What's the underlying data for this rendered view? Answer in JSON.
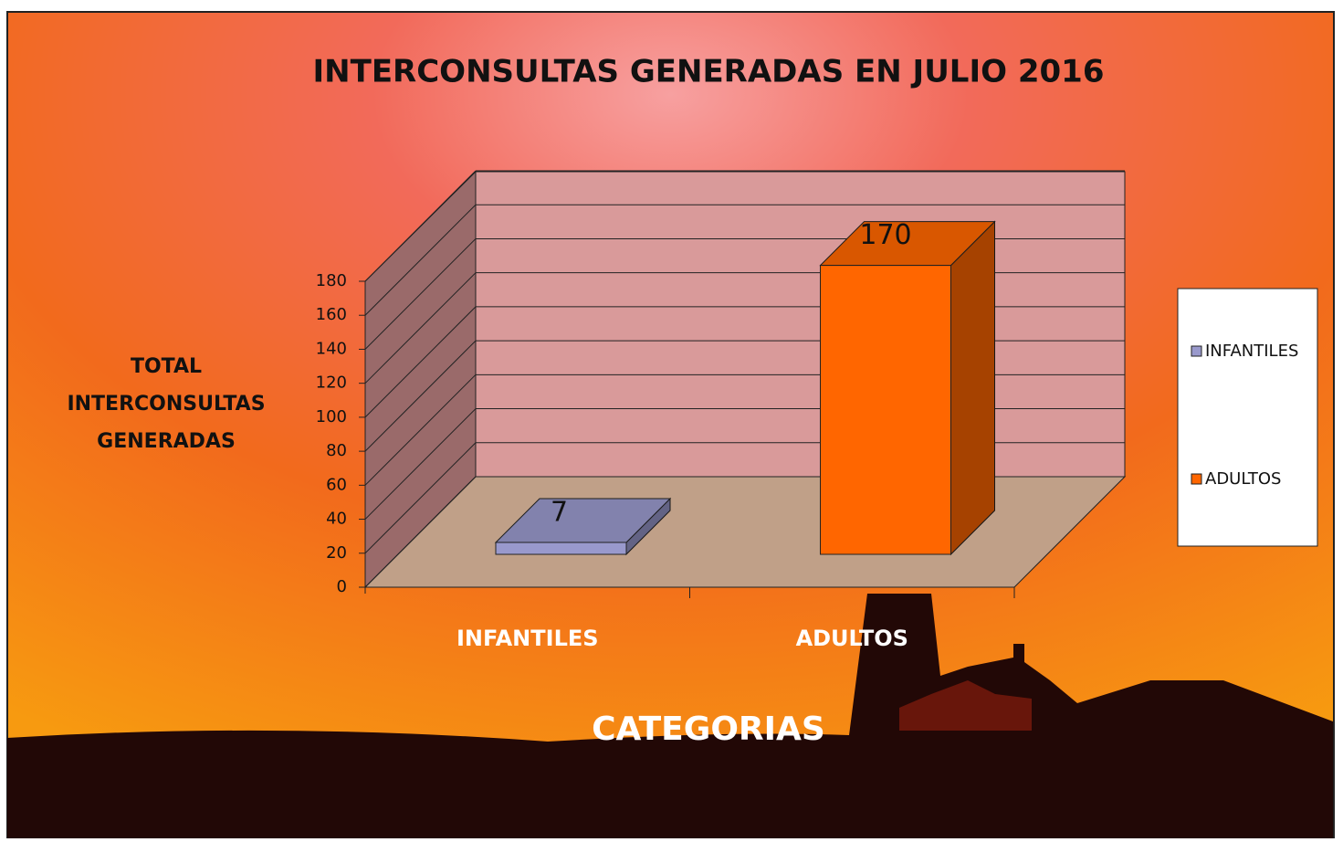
{
  "chart_data": {
    "type": "bar3d",
    "title": "INTERCONSULTAS  GENERADAS EN  JULIO  2016",
    "x_label": "CATEGORIAS",
    "y_label": [
      "TOTAL",
      "INTERCONSULTAS",
      "GENERADAS"
    ],
    "categories": [
      "INFANTILES",
      "ADULTOS"
    ],
    "series": [
      {
        "name": "INFANTILES",
        "color": "#9999cc",
        "values": [
          7,
          null
        ]
      },
      {
        "name": "ADULTOS",
        "color": "#ff6600",
        "values": [
          null,
          170
        ]
      }
    ],
    "ylim": [
      0,
      180
    ],
    "yticks": [
      0,
      20,
      40,
      60,
      80,
      100,
      120,
      140,
      160,
      180
    ],
    "grid": true,
    "legend": "right"
  }
}
